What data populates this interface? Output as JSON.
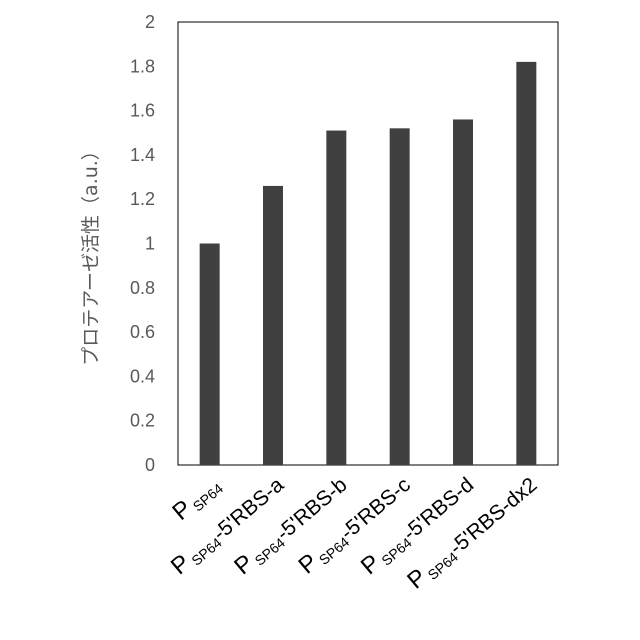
{
  "chart_data": {
    "type": "bar",
    "ylabel": "プロテアーゼ活性（a.u.）",
    "xlabel": "",
    "ylim": [
      0,
      2
    ],
    "yticks": [
      0,
      0.2,
      0.4,
      0.6,
      0.8,
      1,
      1.2,
      1.4,
      1.6,
      1.8,
      2
    ],
    "ytick_labels": [
      "0",
      "0.2",
      "0.4",
      "0.6",
      "0.8",
      "1",
      "1.2",
      "1.4",
      "1.6",
      "1.8",
      "2"
    ],
    "grid": false,
    "categories": [
      {
        "main": "P",
        "sub": "SP64",
        "suffix": ""
      },
      {
        "main": "P",
        "sub": "SP64",
        "suffix": "-5'RBS-a"
      },
      {
        "main": "P",
        "sub": "SP64",
        "suffix": "-5'RBS-b"
      },
      {
        "main": "P",
        "sub": "SP64",
        "suffix": "-5'RBS-c"
      },
      {
        "main": "P",
        "sub": "SP64",
        "suffix": "-5'RBS-d"
      },
      {
        "main": "P",
        "sub": "SP64",
        "suffix": "-5'RBS-dx2"
      }
    ],
    "values": [
      1.0,
      1.26,
      1.51,
      1.52,
      1.56,
      1.82
    ],
    "colors": {
      "bar": "#404040",
      "axis": "#000000",
      "text": "#595959"
    }
  }
}
